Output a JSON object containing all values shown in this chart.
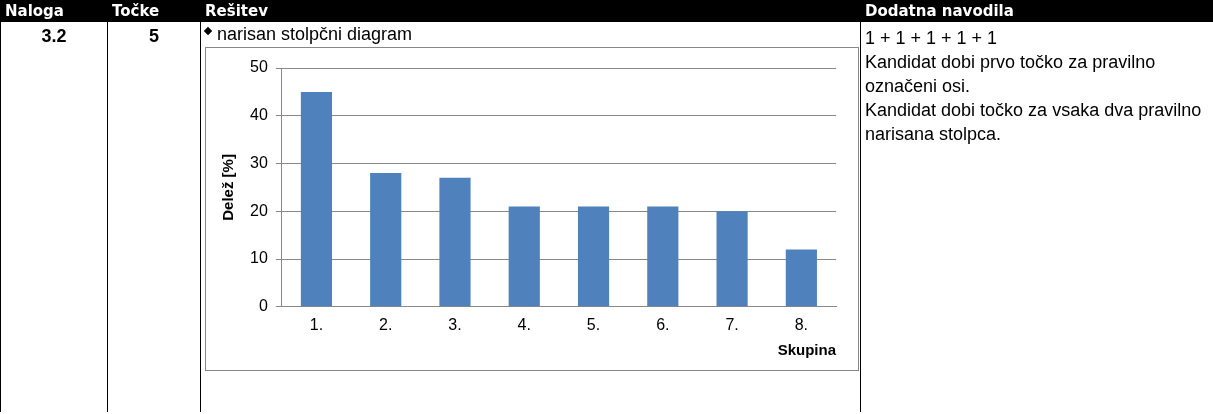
{
  "chart_data": {
    "type": "bar",
    "title": "narisan stolpčni diagram",
    "xlabel": "Skupina",
    "ylabel": "Delež [%]",
    "categories": [
      "1.",
      "2.",
      "3.",
      "4.",
      "5.",
      "6.",
      "7.",
      "8."
    ],
    "values": [
      45,
      28,
      27,
      21,
      21,
      21,
      20,
      12
    ],
    "color": "#4f81bd",
    "ylim": [
      0,
      50
    ],
    "yticks": [
      0,
      10,
      20,
      30,
      40,
      50
    ],
    "grid": "y",
    "legend": false,
    "annotations": [
      "Naloga",
      "Točke",
      "Rešitev",
      "Dodatna navodila",
      "3.2",
      "5",
      "1 + 1 + 1 + 1 + 1",
      "Kandidat dobi prvo točko za pravilno označeni osi.",
      "Kandidat dobi točko za vsaka dva pravilno narisana stolpca."
    ]
  }
}
